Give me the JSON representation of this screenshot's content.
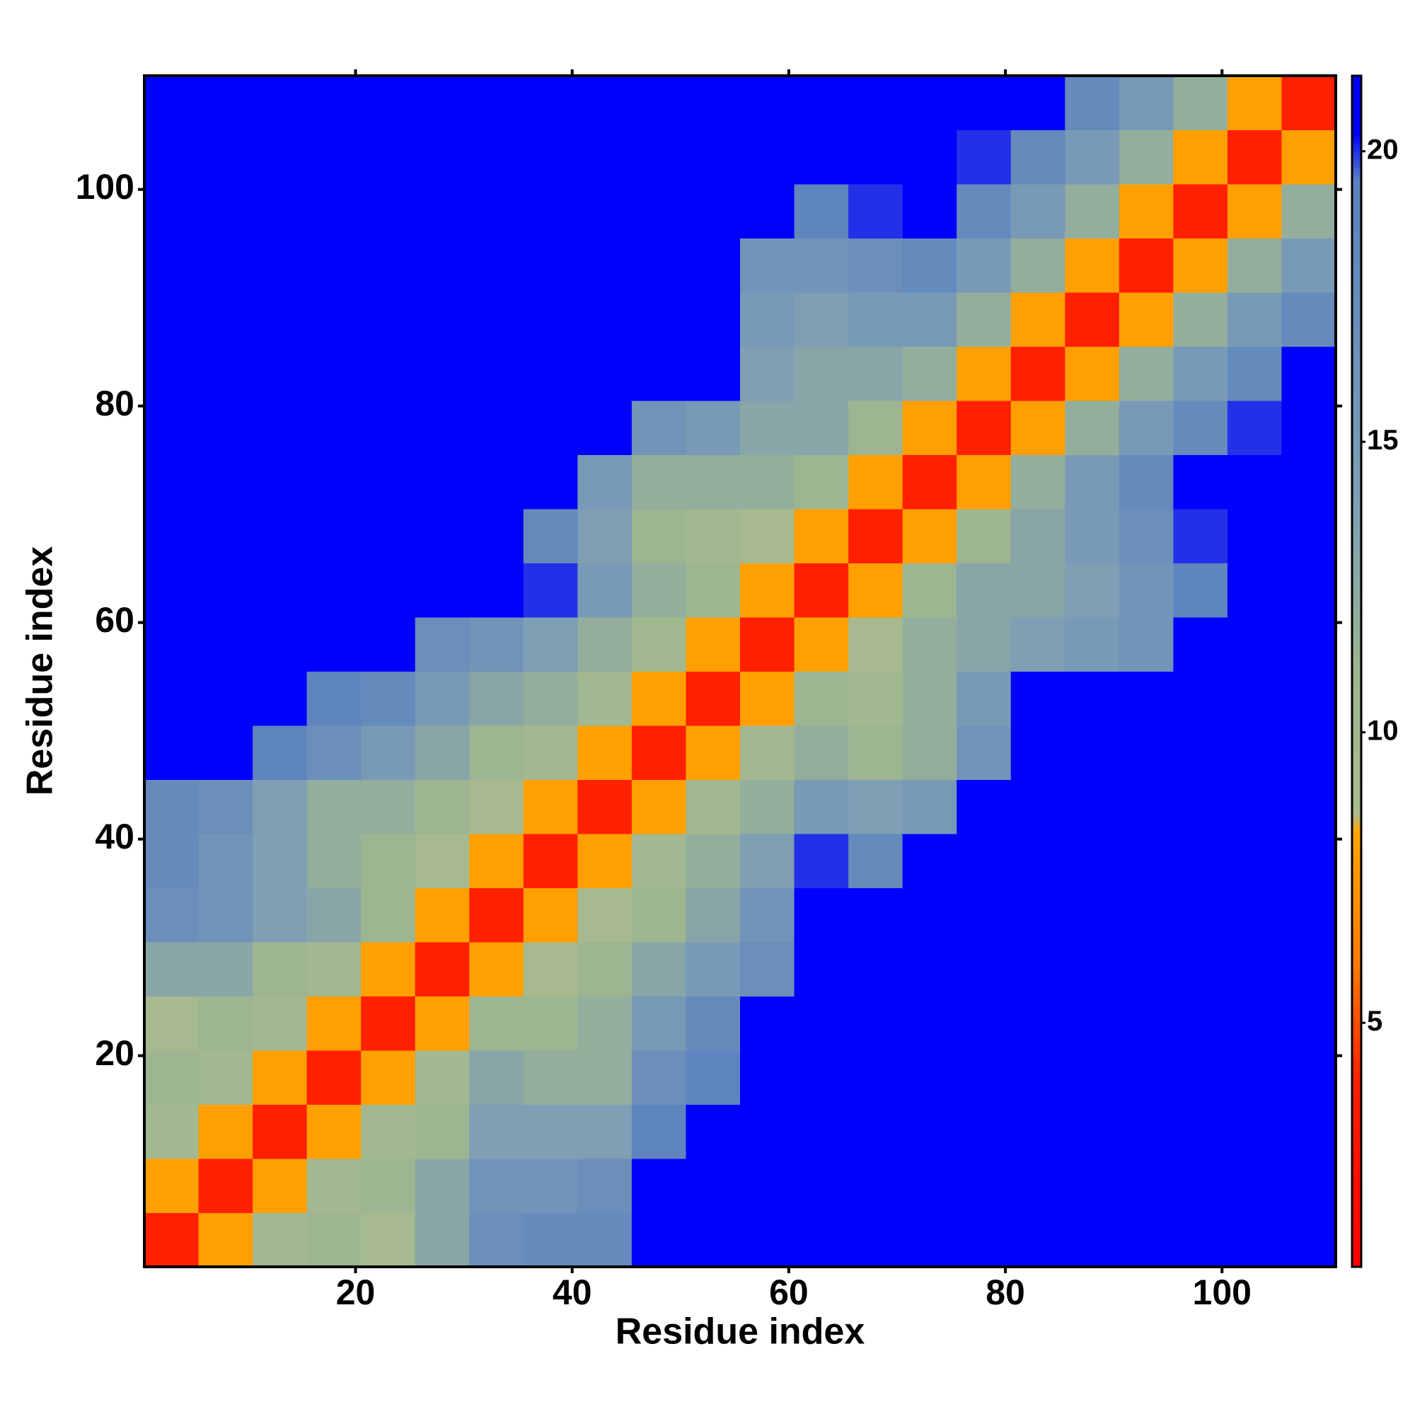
{
  "chart_data": {
    "type": "heatmap",
    "xlabel": "Residue index",
    "ylabel": "Residue index",
    "x": [
      3,
      8,
      13,
      18,
      23,
      28,
      33,
      38,
      43,
      48,
      53,
      58,
      63,
      68,
      73,
      78,
      83,
      88,
      93,
      98,
      103,
      108
    ],
    "y": [
      3,
      8,
      13,
      18,
      23,
      28,
      33,
      38,
      43,
      48,
      53,
      58,
      63,
      68,
      73,
      78,
      83,
      88,
      93,
      98,
      103,
      108
    ],
    "z": [
      [
        4,
        8,
        10,
        11,
        9,
        13,
        17,
        18,
        18,
        21,
        21,
        21,
        21,
        21,
        21,
        21,
        21,
        21,
        21,
        21,
        21,
        21
      ],
      [
        8,
        4,
        8,
        10,
        11,
        13,
        16,
        16,
        17,
        21,
        21,
        21,
        21,
        21,
        21,
        21,
        21,
        21,
        21,
        21,
        21,
        21
      ],
      [
        10,
        8,
        4,
        8,
        10,
        11,
        14,
        14,
        14,
        19,
        21,
        21,
        21,
        21,
        21,
        21,
        21,
        21,
        21,
        21,
        21,
        21
      ],
      [
        11,
        10,
        8,
        4,
        8,
        10,
        13,
        12,
        12,
        17,
        19,
        21,
        21,
        21,
        21,
        21,
        21,
        21,
        21,
        21,
        21,
        21
      ],
      [
        9,
        11,
        10,
        8,
        4,
        8,
        11,
        11,
        12,
        15,
        18,
        21,
        21,
        21,
        21,
        21,
        21,
        21,
        21,
        21,
        21,
        21
      ],
      [
        13,
        13,
        11,
        10,
        8,
        4,
        8,
        9,
        11,
        13,
        15,
        17,
        21,
        21,
        21,
        21,
        21,
        21,
        21,
        21,
        21,
        21
      ],
      [
        17,
        16,
        14,
        13,
        11,
        8,
        4,
        8,
        9,
        11,
        13,
        16,
        21,
        21,
        21,
        21,
        21,
        21,
        21,
        21,
        21,
        21
      ],
      [
        18,
        16,
        14,
        12,
        11,
        9,
        8,
        4,
        8,
        10,
        12,
        14,
        20,
        18,
        21,
        21,
        21,
        21,
        21,
        21,
        21,
        21
      ],
      [
        18,
        17,
        14,
        12,
        12,
        11,
        9,
        8,
        4,
        8,
        10,
        12,
        15,
        14,
        15,
        21,
        21,
        21,
        21,
        21,
        21,
        21
      ],
      [
        21,
        21,
        19,
        17,
        15,
        13,
        11,
        10,
        8,
        4,
        8,
        10,
        12,
        11,
        12,
        16,
        21,
        21,
        21,
        21,
        21,
        21
      ],
      [
        21,
        21,
        21,
        19,
        18,
        15,
        13,
        12,
        10,
        8,
        4,
        8,
        11,
        10,
        12,
        15,
        21,
        21,
        21,
        21,
        21,
        21
      ],
      [
        21,
        21,
        21,
        21,
        21,
        17,
        16,
        14,
        12,
        10,
        8,
        4,
        8,
        9,
        12,
        13,
        14,
        15,
        16,
        21,
        21,
        21
      ],
      [
        21,
        21,
        21,
        21,
        21,
        21,
        21,
        20,
        15,
        12,
        11,
        8,
        4,
        8,
        11,
        13,
        13,
        14,
        16,
        19,
        21,
        21
      ],
      [
        21,
        21,
        21,
        21,
        21,
        21,
        21,
        18,
        14,
        11,
        10,
        9,
        8,
        4,
        8,
        11,
        13,
        15,
        17,
        20,
        21,
        21
      ],
      [
        21,
        21,
        21,
        21,
        21,
        21,
        21,
        21,
        15,
        12,
        12,
        12,
        11,
        8,
        4,
        8,
        12,
        15,
        18,
        21,
        21,
        21
      ],
      [
        21,
        21,
        21,
        21,
        21,
        21,
        21,
        21,
        21,
        16,
        15,
        13,
        13,
        11,
        8,
        4,
        8,
        12,
        15,
        18,
        20,
        21
      ],
      [
        21,
        21,
        21,
        21,
        21,
        21,
        21,
        21,
        21,
        21,
        21,
        14,
        13,
        13,
        12,
        8,
        4,
        8,
        12,
        15,
        18,
        21
      ],
      [
        21,
        21,
        21,
        21,
        21,
        21,
        21,
        21,
        21,
        21,
        21,
        15,
        14,
        15,
        15,
        12,
        8,
        4,
        8,
        12,
        15,
        18
      ],
      [
        21,
        21,
        21,
        21,
        21,
        21,
        21,
        21,
        21,
        21,
        21,
        16,
        16,
        17,
        18,
        15,
        12,
        8,
        4,
        8,
        12,
        15
      ],
      [
        21,
        21,
        21,
        21,
        21,
        21,
        21,
        21,
        21,
        21,
        21,
        21,
        19,
        20,
        21,
        18,
        15,
        12,
        8,
        4,
        8,
        12
      ],
      [
        21,
        21,
        21,
        21,
        21,
        21,
        21,
        21,
        21,
        21,
        21,
        21,
        21,
        21,
        21,
        20,
        18,
        15,
        12,
        8,
        4,
        8
      ],
      [
        21,
        21,
        21,
        21,
        21,
        21,
        21,
        21,
        21,
        21,
        21,
        21,
        21,
        21,
        21,
        21,
        21,
        18,
        15,
        12,
        8,
        4
      ]
    ],
    "xlim": [
      0.5,
      110.5
    ],
    "ylim": [
      0.5,
      110.5
    ],
    "xticks": [
      20,
      40,
      60,
      80,
      100
    ],
    "yticks": [
      20,
      40,
      60,
      80,
      100
    ],
    "colorbar": {
      "lim": [
        0.8,
        21.3
      ],
      "ticks": [
        5,
        10,
        15,
        20
      ]
    },
    "colorscale": [
      [
        0.8,
        "#ff0000"
      ],
      [
        4,
        "#ff2000"
      ],
      [
        6,
        "#ff7a00"
      ],
      [
        8.3,
        "#ffa500"
      ],
      [
        8.6,
        "#a9bb8e"
      ],
      [
        11,
        "#9db591"
      ],
      [
        14,
        "#7e9fb4"
      ],
      [
        19.5,
        "#5b82bf"
      ],
      [
        20.3,
        "#0000ff"
      ],
      [
        21.3,
        "#0000ff"
      ]
    ]
  }
}
